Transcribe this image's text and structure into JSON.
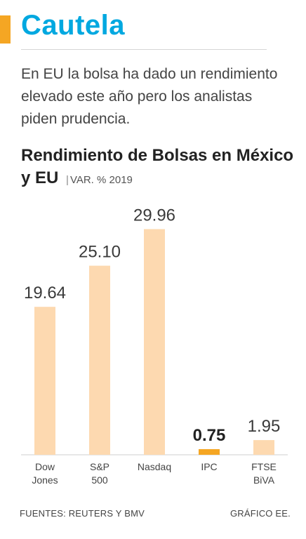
{
  "header": {
    "title": "Cautela",
    "description": "En EU la bolsa ha dado un rendimiento elevado este año pero los analistas piden prudencia."
  },
  "colors": {
    "title": "#00a8e0",
    "accent": "#f5a623",
    "bar": "#fdd9b0",
    "bar_highlight": "#f5a623"
  },
  "chart_data": {
    "type": "bar",
    "title": "Rendimiento de Bolsas en México y EU",
    "subtitle": "VAR. %  2019",
    "categories": [
      [
        "Dow",
        "Jones"
      ],
      [
        "S&P",
        "500"
      ],
      [
        "Nasdaq"
      ],
      [
        "IPC"
      ],
      [
        "FTSE",
        "BiVA"
      ]
    ],
    "values": [
      19.64,
      25.1,
      29.96,
      0.75,
      1.95
    ],
    "value_labels": [
      "19.64",
      "25.10",
      "29.96",
      "0.75",
      "1.95"
    ],
    "highlight_index": 3,
    "ylim": [
      0,
      30
    ],
    "grid": false
  },
  "footer": {
    "source": "FUENTES: REUTERS Y BMV",
    "credit": "GRÁFICO EE."
  }
}
